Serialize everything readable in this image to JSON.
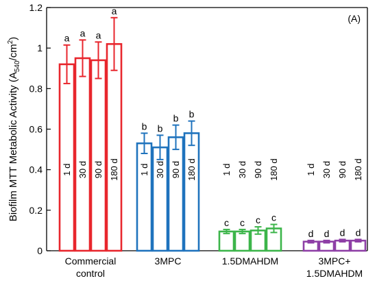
{
  "chart_data": {
    "type": "bar",
    "panel_label": "(A)",
    "ylabel": {
      "prefix": "Biofilm MTT Metabolic Activity (A",
      "subscript": "540",
      "mid": "/cm",
      "superscript": "2",
      "suffix": ")"
    },
    "ylim": [
      0,
      1.2
    ],
    "yticks": [
      0,
      0.2,
      0.4,
      0.6,
      0.8,
      1,
      1.2
    ],
    "ytick_labels": [
      "0",
      "0.2",
      "0.4",
      "0.6",
      "0.8",
      "1",
      "1.2"
    ],
    "grid": false,
    "groups": [
      {
        "label_lines": [
          "Commercial",
          "control"
        ],
        "color": "#e8262d",
        "bars": [
          {
            "time": "1 d",
            "value": 0.92,
            "err": 0.095,
            "sig": "a"
          },
          {
            "time": "30 d",
            "value": 0.95,
            "err": 0.09,
            "sig": "a"
          },
          {
            "time": "90 d",
            "value": 0.94,
            "err": 0.09,
            "sig": "a"
          },
          {
            "time": "180 d",
            "value": 1.02,
            "err": 0.13,
            "sig": "a"
          }
        ]
      },
      {
        "label_lines": [
          "3MPC"
        ],
        "color": "#1f73bd",
        "bars": [
          {
            "time": "1 d",
            "value": 0.53,
            "err": 0.05,
            "sig": "b"
          },
          {
            "time": "30 d",
            "value": 0.51,
            "err": 0.06,
            "sig": "b"
          },
          {
            "time": "90 d",
            "value": 0.56,
            "err": 0.06,
            "sig": "b"
          },
          {
            "time": "180 d",
            "value": 0.58,
            "err": 0.06,
            "sig": "b"
          }
        ]
      },
      {
        "label_lines": [
          "1.5DMAHDM"
        ],
        "color": "#3cb54a",
        "bars": [
          {
            "time": "1 d",
            "value": 0.095,
            "err": 0.01,
            "sig": "c"
          },
          {
            "time": "30 d",
            "value": 0.095,
            "err": 0.01,
            "sig": "c"
          },
          {
            "time": "90 d",
            "value": 0.1,
            "err": 0.018,
            "sig": "c"
          },
          {
            "time": "180 d",
            "value": 0.11,
            "err": 0.02,
            "sig": "c"
          }
        ]
      },
      {
        "label_lines": [
          "3MPC+",
          "1.5DMAHDM"
        ],
        "color": "#8e3fa6",
        "bars": [
          {
            "time": "1 d",
            "value": 0.045,
            "err": 0.006,
            "sig": "d"
          },
          {
            "time": "30 d",
            "value": 0.045,
            "err": 0.006,
            "sig": "d"
          },
          {
            "time": "90 d",
            "value": 0.05,
            "err": 0.006,
            "sig": "d"
          },
          {
            "time": "180 d",
            "value": 0.05,
            "err": 0.006,
            "sig": "d"
          }
        ]
      }
    ]
  }
}
